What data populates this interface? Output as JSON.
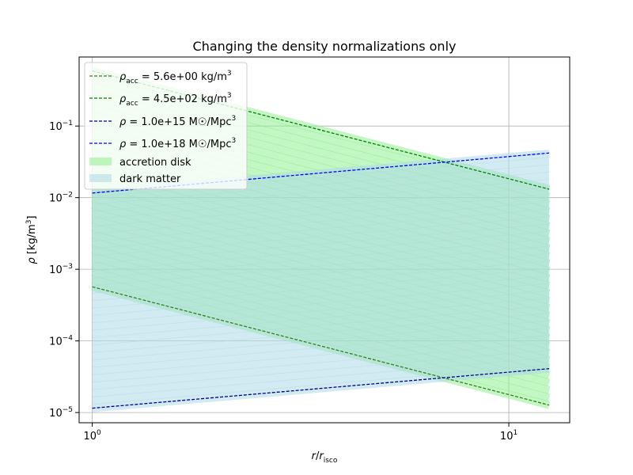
{
  "chart_data": {
    "type": "line",
    "title": "Changing the density normalizations only",
    "xlabel": "r/r_isco",
    "ylabel": "ρ [kg/m³]",
    "xscale": "log",
    "yscale": "log",
    "xlim": [
      0.93,
      14.0
    ],
    "ylim": [
      7.2e-06,
      0.92
    ],
    "grid": true,
    "legend_position": "top-left",
    "x_ticks": [
      {
        "value": 1,
        "label": "10^0"
      },
      {
        "value": 10,
        "label": "10^1"
      }
    ],
    "y_ticks": [
      {
        "value": 1e-05,
        "label": "10^-5"
      },
      {
        "value": 0.0001,
        "label": "10^-4"
      },
      {
        "value": 0.001,
        "label": "10^-3"
      },
      {
        "value": 0.01,
        "label": "10^-2"
      },
      {
        "value": 0.1,
        "label": "10^-1"
      }
    ],
    "series": [
      {
        "name": "ρ_acc = 5.6e+00 kg/m³",
        "style": "dashed",
        "color": "#3a7d22",
        "x": [
          1.0,
          12.5
        ],
        "y": [
          0.00057,
          1.27e-05
        ]
      },
      {
        "name": "ρ_acc = 4.5e+02 kg/m³",
        "style": "dashed",
        "color": "#008000",
        "x": [
          1.0,
          12.5
        ],
        "y": [
          0.59,
          0.0131
        ]
      },
      {
        "name": "ρ = 1.0e+15 M☉/Mpc³",
        "style": "dashed",
        "color": "#00008b",
        "x": [
          1.0,
          12.5
        ],
        "y": [
          1.15e-05,
          4.1e-05
        ]
      },
      {
        "name": "ρ = 1.0e+18 M☉/Mpc³",
        "style": "dashed",
        "color": "#0000ff",
        "x": [
          1.0,
          12.5
        ],
        "y": [
          0.0116,
          0.042
        ]
      }
    ],
    "bands": [
      {
        "name": "accretion disk",
        "color": "#90ee90",
        "x": [
          1.0,
          12.5
        ],
        "y_start_from": 0.00057,
        "y_start_to": 0.59,
        "slope_ratio": 0.0223,
        "count": 30
      },
      {
        "name": "dark matter",
        "color": "#add8e6",
        "x": [
          1.0,
          12.5
        ],
        "y_start_from": 1.15e-05,
        "y_start_to": 0.0116,
        "slope_ratio": 3.56,
        "count": 30
      }
    ],
    "legend": [
      {
        "label_main": "ρ",
        "label_sub": "acc",
        "label_rest": " = 5.6e+00 kg/m",
        "label_sup": "3",
        "kind": "line"
      },
      {
        "label_main": "ρ",
        "label_sub": "acc",
        "label_rest": " = 4.5e+02 kg/m",
        "label_sup": "3",
        "kind": "line"
      },
      {
        "label_main": "ρ",
        "label_sub": "",
        "label_rest": " = 1.0e+15 M☉/Mpc",
        "label_sup": "3",
        "kind": "line"
      },
      {
        "label_main": "ρ",
        "label_sub": "",
        "label_rest": " = 1.0e+18 M☉/Mpc",
        "label_sup": "3",
        "kind": "line"
      },
      {
        "label_main": "accretion disk",
        "label_sub": "",
        "label_rest": "",
        "label_sup": "",
        "kind": "band",
        "color": "#90ee90"
      },
      {
        "label_main": "dark matter",
        "label_sub": "",
        "label_rest": "",
        "label_sup": "",
        "kind": "band",
        "color": "#add8e6"
      }
    ]
  }
}
